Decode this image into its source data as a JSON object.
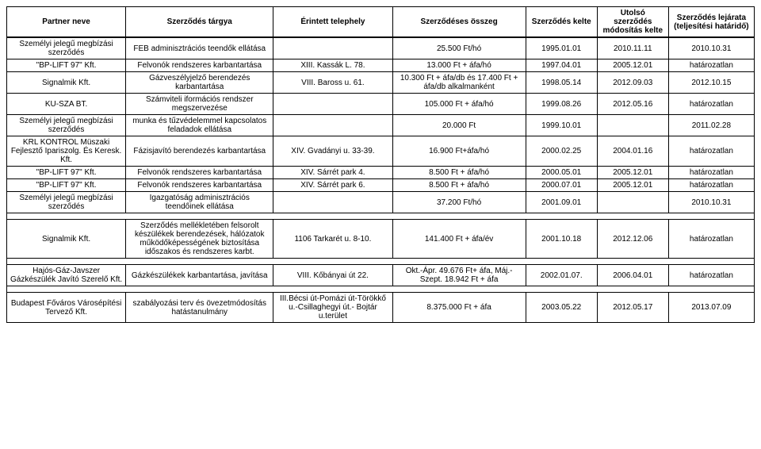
{
  "table": {
    "headers": {
      "partner": "Partner neve",
      "subject": "Szerződés tárgya",
      "site": "Érintett telephely",
      "amount": "Szerződéses összeg",
      "date_signed": "Szerződés kelte",
      "date_modified": "Utolsó szerződés módosítás kelte",
      "date_expiry": "Szerződés lejárata (teljesítési határidő)"
    },
    "rows": [
      {
        "partner": "Személyi jelegű megbízási szerződés",
        "subject": "FEB adminisztrációs teendők ellátása",
        "site": "",
        "amount": "25.500 Ft/hó",
        "date_signed": "1995.01.01",
        "date_modified": "2010.11.11",
        "date_expiry": "2010.10.31"
      },
      {
        "partner": "\"BP-LIFT 97\" Kft.",
        "subject": "Felvonók rendszeres karbantartása",
        "site": "XIII. Kassák L. 78.",
        "amount": "13.000 Ft + áfa/hó",
        "date_signed": "1997.04.01",
        "date_modified": "2005.12.01",
        "date_expiry": "határozatlan"
      },
      {
        "partner": "Signalmik Kft.",
        "subject": "Gázveszélyjelző berendezés karbantartása",
        "site": "VIII. Baross u. 61.",
        "amount": "10.300 Ft + áfa/db és 17.400 Ft + áfa/db alkalmanként",
        "date_signed": "1998.05.14",
        "date_modified": "2012.09.03",
        "date_expiry": "2012.10.15"
      },
      {
        "partner": "KU-SZA BT.",
        "subject": "Számviteli iformációs rendszer megszervezése",
        "site": "",
        "amount": "105.000 Ft + áfa/hó",
        "date_signed": "1999.08.26",
        "date_modified": "2012.05.16",
        "date_expiry": "határozatlan"
      },
      {
        "partner": "Személyi jelegű megbízási szerződés",
        "subject": "munka és tűzvédelemmel kapcsolatos feladadok ellátása",
        "site": "",
        "amount": "20.000 Ft",
        "date_signed": "1999.10.01",
        "date_modified": "",
        "date_expiry": "2011.02.28"
      },
      {
        "partner": "KRL KONTROL Müszaki Fejlesztő Ipariszolg. És Keresk. Kft.",
        "subject": "Fázisjavító berendezés karbantartása",
        "site": "XIV. Gvadányi u. 33-39.",
        "amount": "16.900 Ft+áfa/hó",
        "date_signed": "2000.02.25",
        "date_modified": "2004.01.16",
        "date_expiry": "határozatlan"
      },
      {
        "partner": "\"BP-LIFT 97\" Kft.",
        "subject": "Felvonók rendszeres karbantartása",
        "site": "XIV. Sárrét park 4.",
        "amount": "8.500 Ft + áfa/hó",
        "date_signed": "2000.05.01",
        "date_modified": "2005.12.01",
        "date_expiry": "határozatlan"
      },
      {
        "partner": "\"BP-LIFT 97\" Kft.",
        "subject": "Felvonók rendszeres karbantartása",
        "site": "XIV. Sárrét park 6.",
        "amount": "8.500 Ft + áfa/hó",
        "date_signed": "2000.07.01",
        "date_modified": "2005.12.01",
        "date_expiry": "határozatlan"
      },
      {
        "partner": "Személyi jelegű megbízási szerződés",
        "subject": "Igazgatóság adminisztrációs teendőinek ellátása",
        "site": "",
        "amount": "37.200 Ft/hó",
        "date_signed": "2001.09.01",
        "date_modified": "",
        "date_expiry": "2010.10.31"
      },
      {
        "partner": "Signalmik Kft.",
        "subject": "Szerződés mellékletében felsorolt készülékek berendezések, hálózatok működőképességének biztosítása időszakos és rendszeres karbt.",
        "site": "1106 Tarkarét u. 8-10.",
        "amount": "141.400 Ft + áfa/év",
        "date_signed": "2001.10.18",
        "date_modified": "2012.12.06",
        "date_expiry": "határozatlan",
        "spacer": true
      },
      {
        "partner": "Hajós-Gáz-Javszer Gázkészülék Javító Szerelő Kft.",
        "subject": "Gázkészülékek karbantartása, javítása",
        "site": "VIII. Kőbányai út 22.",
        "amount": "Okt.-Ápr. 49.676 Ft+ áfa, Máj.-Szept. 18.942 Ft + áfa",
        "date_signed": "2002.01.07.",
        "date_modified": "2006.04.01",
        "date_expiry": "határozatlan",
        "spacer": true
      },
      {
        "partner": "Budapest Főváros Városépítési Tervező Kft.",
        "subject": "szabályozási terv és övezetmódosítás hatástanulmány",
        "site": "III.Bécsi út-Pomázi út-Törökkő u.-Csillaghegyi út.- Bojtár u.terület",
        "amount": "8.375.000 Ft + áfa",
        "date_signed": "2003.05.22",
        "date_modified": "2012.05.17",
        "date_expiry": "2013.07.09",
        "spacer": true
      }
    ]
  }
}
